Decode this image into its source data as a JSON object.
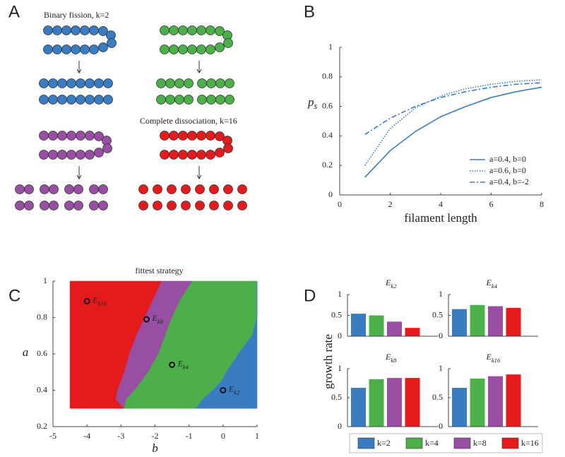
{
  "panel_a": {
    "label": "A",
    "annotations": [
      "Binary fission, k=2",
      "Complete dissociation, k=16"
    ]
  },
  "chart_data": [
    {
      "type": "line",
      "panel_label": "B",
      "xlabel": "filament length",
      "ylabel": "p",
      "ylabel_sub": "s",
      "x": [
        1,
        2,
        3,
        4,
        5,
        6,
        7,
        8
      ],
      "xlim": [
        0,
        8
      ],
      "xticks": [
        0,
        2,
        4,
        6,
        8
      ],
      "ylim": [
        0,
        1
      ],
      "yticks": [
        0,
        0.2,
        0.4,
        0.6,
        0.8,
        1
      ],
      "legend": "lower right",
      "series": [
        {
          "name": "a=0.4, b=0",
          "color": "#3a7cc1",
          "style": "solid",
          "values": [
            0.12,
            0.3,
            0.43,
            0.53,
            0.6,
            0.66,
            0.7,
            0.73
          ]
        },
        {
          "name": "a=0.6, b=0",
          "color": "#3a7cc1",
          "style": "dotted",
          "values": [
            0.2,
            0.45,
            0.59,
            0.67,
            0.72,
            0.75,
            0.77,
            0.78
          ]
        },
        {
          "name": "a=0.4, b=-2",
          "color": "#3a7cc1",
          "style": "dashdot",
          "values": [
            0.41,
            0.52,
            0.6,
            0.66,
            0.7,
            0.73,
            0.75,
            0.76
          ]
        }
      ]
    },
    {
      "type": "region",
      "panel_label": "C",
      "title": "fittest strategy",
      "xlabel": "b",
      "ylabel": "a",
      "xlim": [
        -5,
        1
      ],
      "xticks": [
        -5,
        -4,
        -3,
        -2,
        -1,
        0,
        1
      ],
      "ylim": [
        0.2,
        1
      ],
      "yticks": [
        0.2,
        0.4,
        0.6,
        0.8,
        1
      ],
      "b_start": -4.5,
      "a_levels": [
        0.3,
        0.35,
        0.4,
        0.45,
        0.5,
        0.6,
        0.7,
        0.8,
        0.9,
        1
      ],
      "regions": [
        {
          "color": "#e41a1c",
          "right_edge": [
            -2.9,
            -3.15,
            -3.1,
            -3.0,
            -2.9,
            -2.75,
            -2.55,
            -2.3,
            -2.05,
            -1.8
          ]
        },
        {
          "color": "#984ea3",
          "right_edge": [
            -2.9,
            -2.85,
            -2.6,
            -2.4,
            -2.2,
            -1.9,
            -1.7,
            -1.5,
            -1.25,
            -0.9
          ]
        },
        {
          "color": "#4daf4a",
          "right_edge": [
            -0.8,
            -0.6,
            -0.3,
            -0.05,
            0.1,
            0.45,
            0.85,
            1,
            1,
            1
          ]
        },
        {
          "color": "#3a7cc1",
          "right_edge": [
            1,
            1,
            1,
            1,
            1,
            1,
            1,
            1,
            1,
            1
          ]
        }
      ],
      "points": [
        {
          "label": "E",
          "sub": "k16",
          "b": -4,
          "a": 0.89
        },
        {
          "label": "E",
          "sub": "k8",
          "b": -2.25,
          "a": 0.79
        },
        {
          "label": "E",
          "sub": "k4",
          "b": -1.5,
          "a": 0.54
        },
        {
          "label": "E",
          "sub": "k2",
          "b": 0,
          "a": 0.4
        }
      ]
    },
    {
      "type": "bar_grid",
      "panel_label": "D",
      "ylabel": "growth rate",
      "ylim": [
        0,
        1
      ],
      "yticks": [
        0,
        0.5,
        1
      ],
      "series": [
        {
          "name": "k=2",
          "color": "#3a7cc1"
        },
        {
          "name": "k=4",
          "color": "#4daf4a"
        },
        {
          "name": "k=8",
          "color": "#984ea3"
        },
        {
          "name": "k=16",
          "color": "#e41a1c"
        }
      ],
      "subplots": [
        {
          "title": "E",
          "sub": "k2",
          "values": [
            0.54,
            0.5,
            0.35,
            0.2
          ]
        },
        {
          "title": "E",
          "sub": "k4",
          "values": [
            0.65,
            0.75,
            0.72,
            0.68
          ]
        },
        {
          "title": "E",
          "sub": "k8",
          "values": [
            0.67,
            0.82,
            0.84,
            0.84
          ]
        },
        {
          "title": "E",
          "sub": "k16",
          "values": [
            0.67,
            0.83,
            0.87,
            0.9
          ]
        }
      ]
    }
  ]
}
